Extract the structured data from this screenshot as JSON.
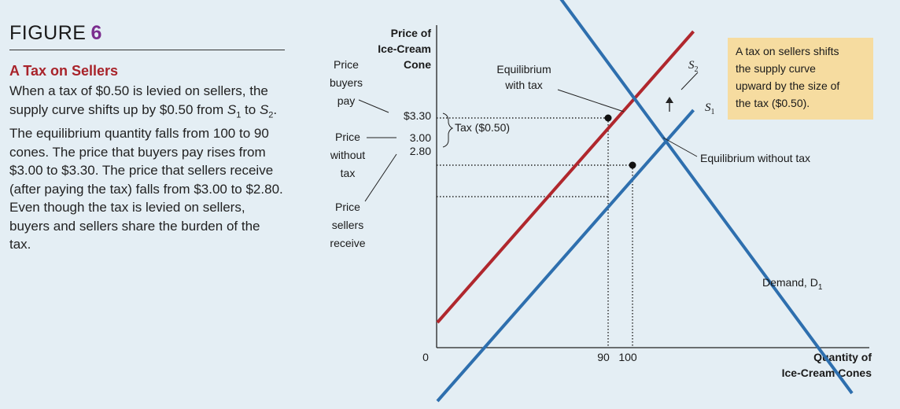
{
  "figure": {
    "label": "FIGURE",
    "number": "6",
    "subtitle": "A Tax on Sellers",
    "caption_parts": {
      "p1": "When a tax of $0.50 is levied on sellers, the supply curve shifts up by $0.50 from ",
      "s": "S",
      "sub1": "1",
      "p2": " to ",
      "sub2": "2",
      "p3": ". The equilibrium quantity falls from 100 to 90 cones. The price that buyers pay rises from $3.00 to $3.30. The price that sellers receive (after paying the tax) falls from $3.00 to $2.80. Even though the tax is levied on sellers, buyers and sellers share the burden of the tax."
    }
  },
  "colors": {
    "background": "#e4eef4",
    "supply_original": "#2e6fae",
    "supply_taxed": "#b0272d",
    "demand": "#2e6fae",
    "callout_bg": "#f6dca0",
    "title_accent": "#7b2d8e",
    "subtitle": "#a8232a"
  },
  "chart_data": {
    "type": "line",
    "ylabel": [
      "Price of",
      "Ice-Cream",
      "Cone"
    ],
    "xlabel": [
      "Quantity of",
      "Ice-Cream Cones"
    ],
    "origin_label": "0",
    "y_ticks": [
      {
        "value": 3.3,
        "label": "$3.30"
      },
      {
        "value": 3.0,
        "label": "3.00"
      },
      {
        "value": 2.8,
        "label": "2.80"
      }
    ],
    "x_ticks": [
      {
        "value": 90,
        "label": "90"
      },
      {
        "value": 100,
        "label": "100"
      }
    ],
    "series": [
      {
        "name": "S1",
        "label_main": "S",
        "label_sub": "1",
        "x": [
          20,
          125
        ],
        "y": [
          1.5,
          3.35
        ]
      },
      {
        "name": "S2",
        "label_main": "S",
        "label_sub": "2",
        "x": [
          20,
          125
        ],
        "y": [
          2.0,
          3.85
        ]
      },
      {
        "name": "Demand, D1",
        "label_main": "Demand, D",
        "label_sub": "1",
        "x": [
          60,
          190
        ],
        "y": [
          4.28,
          1.55
        ]
      }
    ],
    "equilibria": [
      {
        "label": "Equilibrium with tax",
        "x": 90,
        "y": 3.3
      },
      {
        "label": "Equilibrium without tax",
        "x": 100,
        "y": 3.0
      }
    ],
    "annotations": {
      "price_buyers_pay": [
        "Price",
        "buyers",
        "pay"
      ],
      "price_without_tax": [
        "Price",
        "without",
        "tax"
      ],
      "price_sellers_receive": [
        "Price",
        "sellers",
        "receive"
      ],
      "eq_with_tax": [
        "Equilibrium",
        "with tax"
      ],
      "eq_without_tax": "Equilibrium without tax",
      "tax_brace": "Tax ($0.50)",
      "callout": [
        "A tax on sellers shifts",
        "the supply curve",
        "upward by the size of",
        "the tax ($0.50)."
      ]
    }
  }
}
